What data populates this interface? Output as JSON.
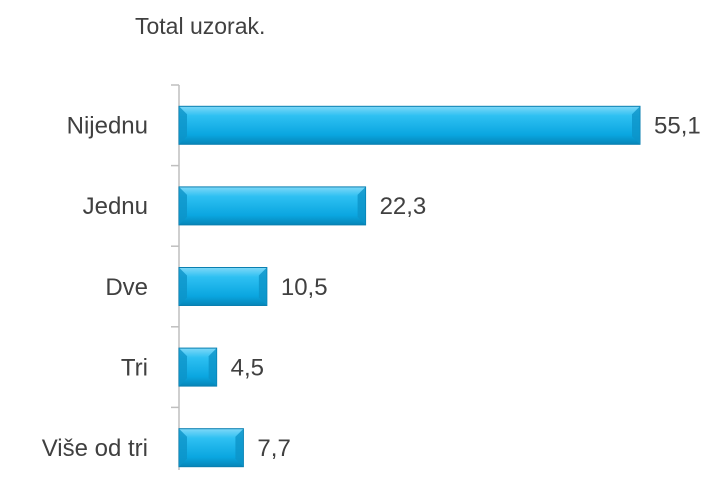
{
  "chart_data": {
    "type": "bar",
    "orientation": "horizontal",
    "title": "Total uzorak.",
    "categories": [
      "Nijednu",
      "Jednu",
      "Dve",
      "Tri",
      "Više od tri"
    ],
    "values": [
      55.1,
      22.3,
      10.5,
      4.5,
      7.7
    ],
    "value_labels": [
      "55,1",
      "22,3",
      "10,5",
      "4,5",
      "7,7"
    ],
    "color": "#19aee8"
  }
}
